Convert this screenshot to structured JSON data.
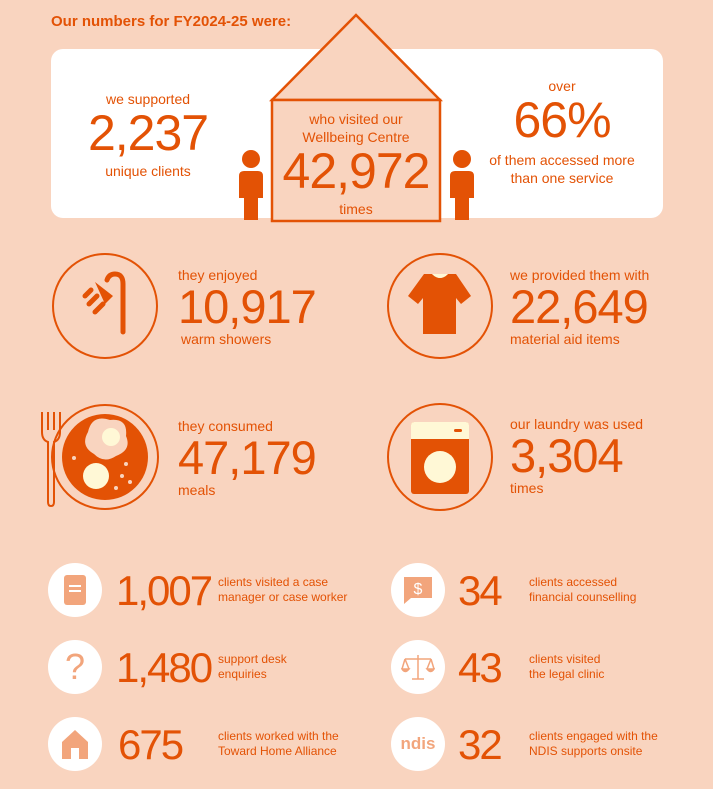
{
  "colors": {
    "background": "#F9D4BF",
    "accent": "#E35205",
    "icon_light": "#F2A57C",
    "cream": "#FFF8D6",
    "card": "#FFFFFF"
  },
  "title": "Our numbers for FY2024-25 were:",
  "hero": {
    "left": {
      "pre": "we supported",
      "value": "2,237",
      "post": "unique clients"
    },
    "center": {
      "pre1": "who visited our",
      "pre2": "Wellbeing Centre",
      "value": "42,972",
      "post": "times",
      "icon": "house-outline-icon"
    },
    "right": {
      "pre": "over",
      "value": "66%",
      "post1": "of them accessed more",
      "post2": "than one service"
    }
  },
  "features": [
    {
      "icon": "shower-icon",
      "pre": "they enjoyed",
      "value": "10,917",
      "post": "warm showers"
    },
    {
      "icon": "tshirt-icon",
      "pre": "we provided them with",
      "value": "22,649",
      "post": "material aid items"
    },
    {
      "icon": "meal-plate-icon",
      "pre": "they consumed",
      "value": "47,179",
      "post": "meals"
    },
    {
      "icon": "washing-machine-icon",
      "pre": "our laundry was used",
      "value": "3,304",
      "post": "times"
    }
  ],
  "stats": [
    {
      "icon": "document-icon",
      "value": "1,007",
      "line1": "clients visited a case",
      "line2": "manager or case worker"
    },
    {
      "icon": "dollar-speech-bubble-icon",
      "value": "34",
      "line1": "clients accessed",
      "line2": "financial counselling"
    },
    {
      "icon": "question-mark-icon",
      "value": "1,480",
      "line1": "support desk",
      "line2": "enquiries"
    },
    {
      "icon": "scales-icon",
      "value": "43",
      "line1": "clients visited",
      "line2": "the legal clinic"
    },
    {
      "icon": "house-icon",
      "value": "675",
      "line1": "clients worked with the",
      "line2": "Toward Home Alliance"
    },
    {
      "icon": "ndis-logo-icon",
      "value": "32",
      "line1": "clients engaged with the",
      "line2": "NDIS supports onsite",
      "logo_text": "ndis"
    }
  ]
}
